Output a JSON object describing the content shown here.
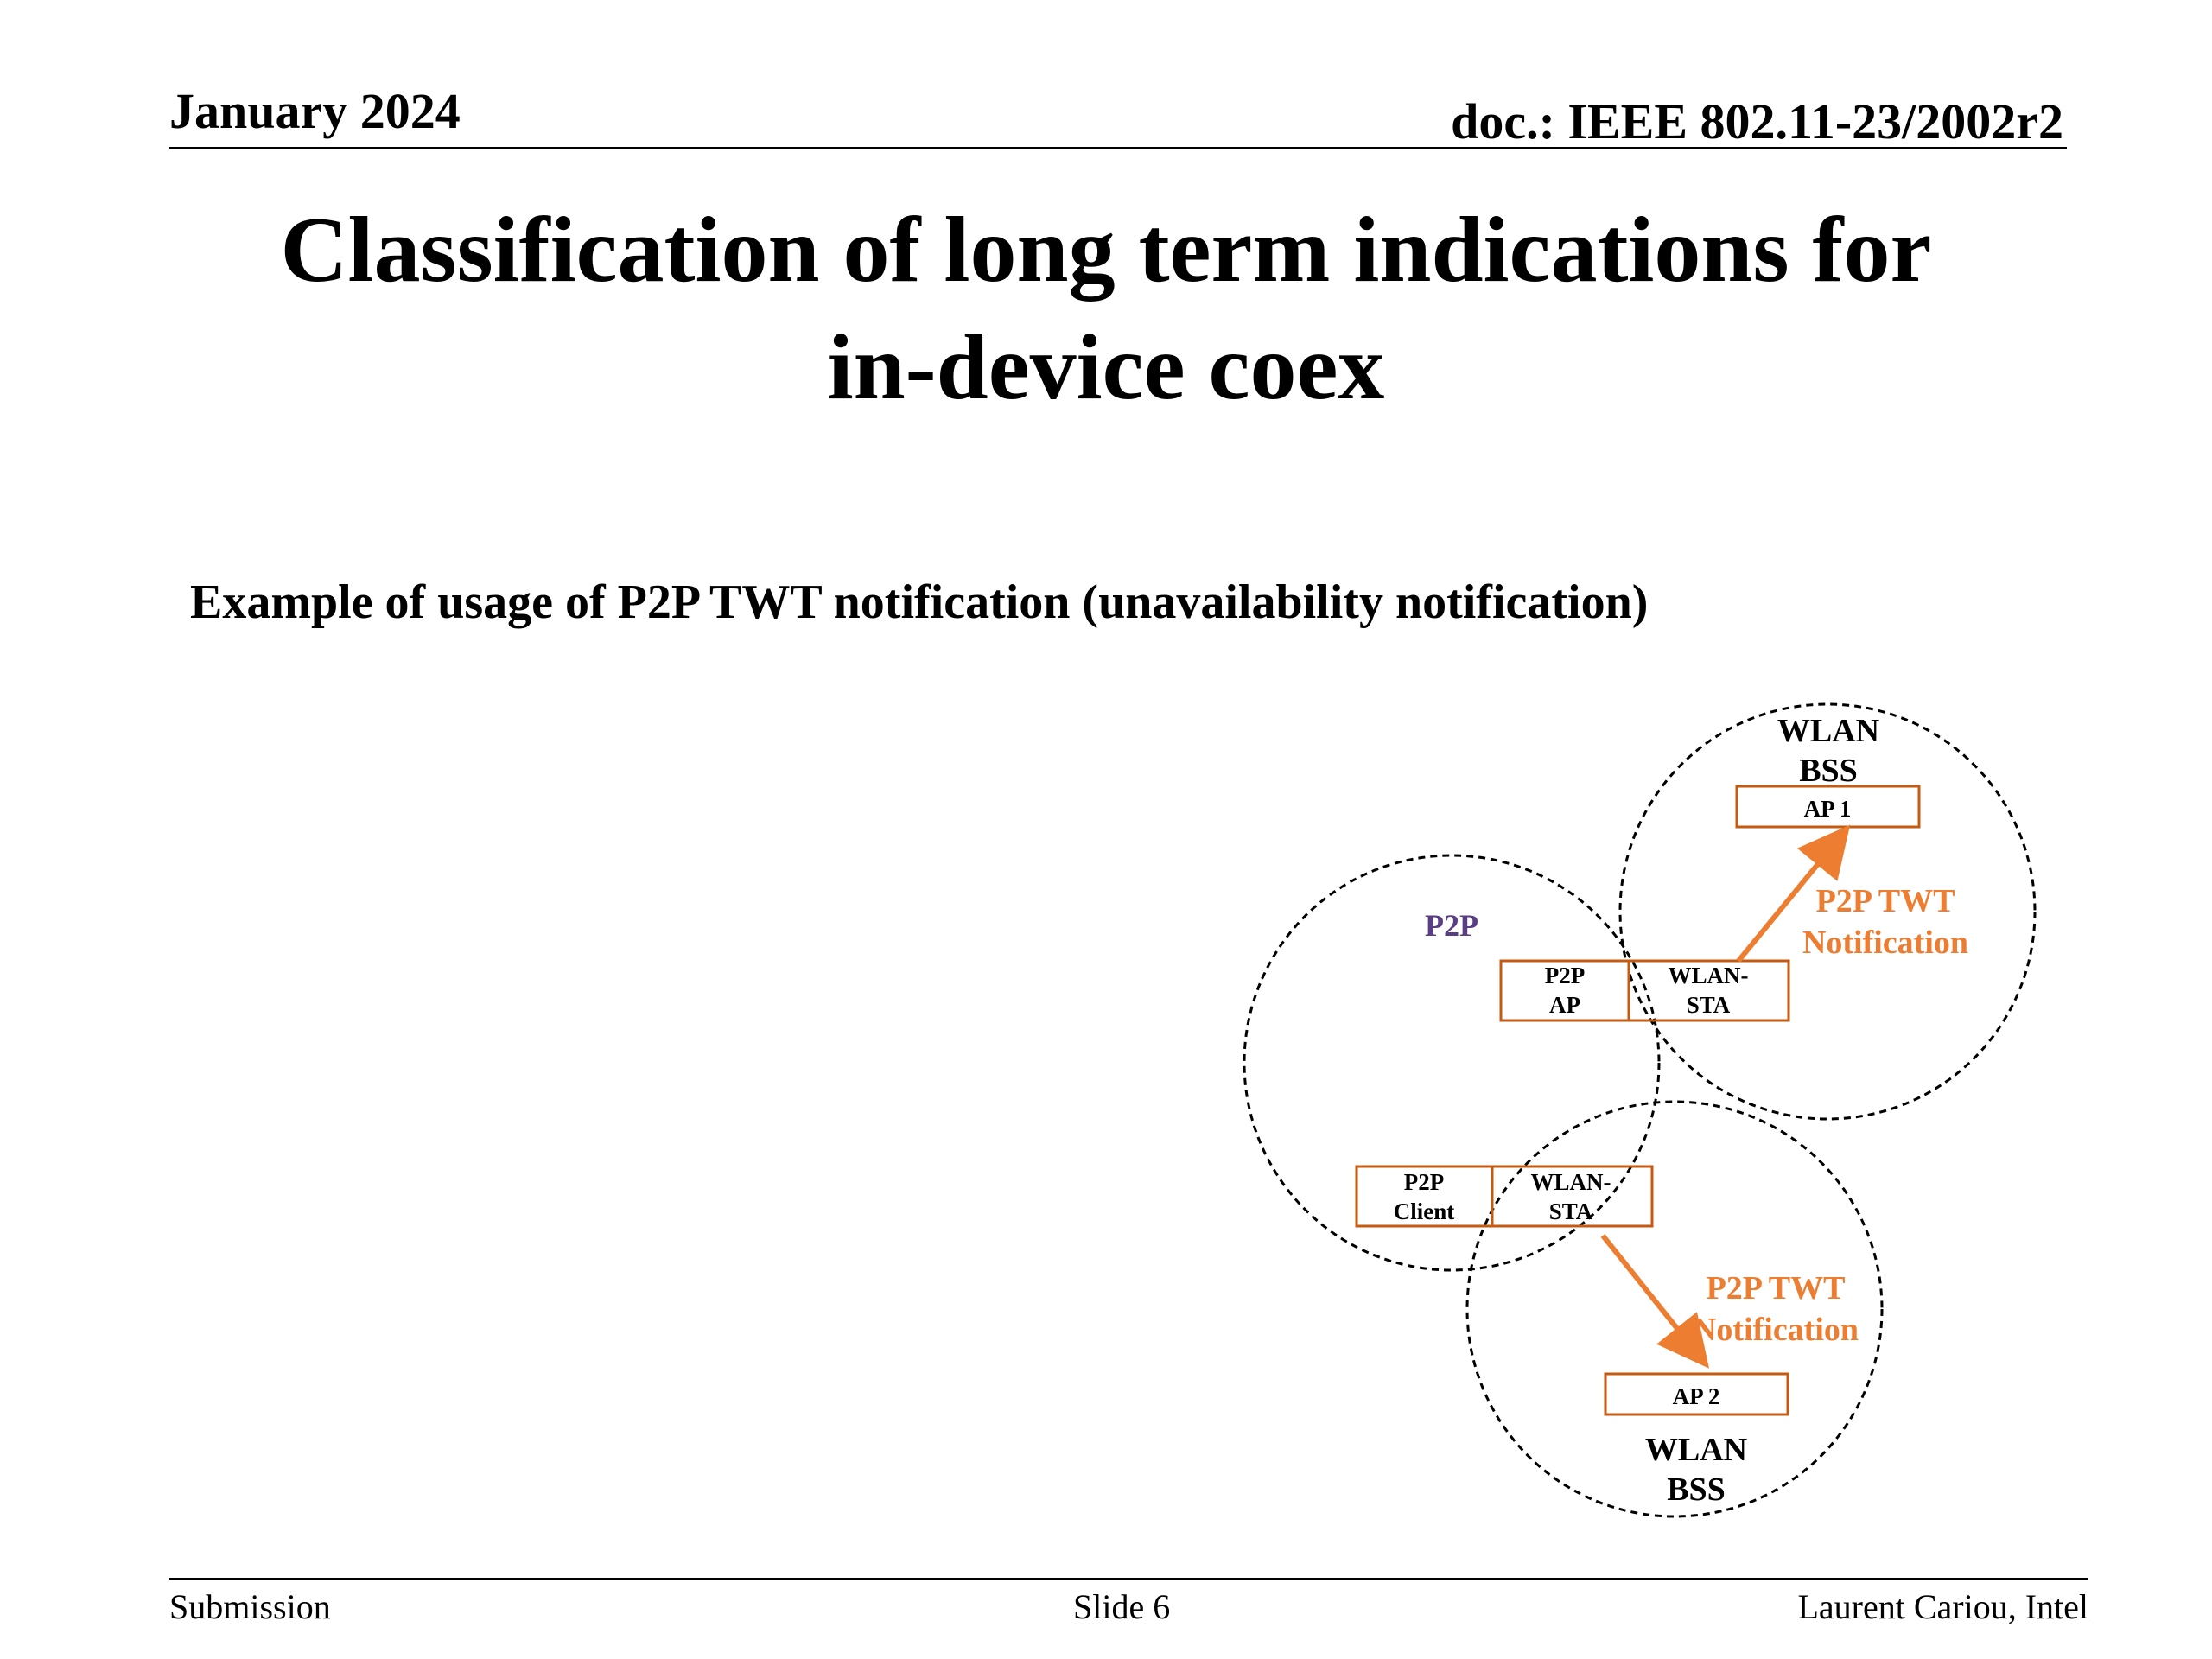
{
  "header": {
    "date": "January 2024",
    "doc": "doc.: IEEE 802.11-23/2002r2"
  },
  "title": {
    "line1": "Classification of long term indications for",
    "line2": "in-device coex"
  },
  "subtitle": "Example of usage of P2P TWT notification (unavailability notification)",
  "diagram": {
    "bss_top": {
      "line1": "WLAN",
      "line2": "BSS"
    },
    "bss_bottom": {
      "line1": "WLAN",
      "line2": "BSS"
    },
    "ap1": "AP 1",
    "ap2": "AP 2",
    "p2p_group_label": "P2P",
    "p2p_ap": {
      "line1": "P2P",
      "line2": "AP"
    },
    "wlan_sta_top": {
      "line1": "WLAN-",
      "line2": "STA"
    },
    "p2p_client": {
      "line1": "P2P",
      "line2": "Client"
    },
    "wlan_sta_bottom": {
      "line1": "WLAN-",
      "line2": "STA"
    },
    "notification_top": {
      "line1": "P2P TWT",
      "line2": "Notification"
    },
    "notification_bottom": {
      "line1": "P2P TWT",
      "line2": "Notification"
    },
    "colors": {
      "box_border": "#C55A11",
      "arrow": "#ED7D31",
      "notification_text": "#ED7D31",
      "p2p_label": "#5A3E85"
    }
  },
  "footer": {
    "left": "Submission",
    "center": "Slide 6",
    "right": "Laurent Cariou, Intel"
  }
}
